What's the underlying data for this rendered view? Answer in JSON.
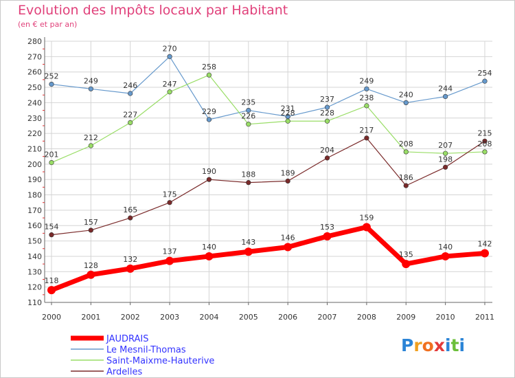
{
  "chart_data": {
    "type": "line",
    "title": "Evolution des Impôts locaux par Habitant",
    "subtitle": "(en € et par an)",
    "xlabel": "",
    "ylabel": "",
    "ylim": [
      110,
      280
    ],
    "ytick_step": 10,
    "grid": true,
    "legend_position": "bottom-left",
    "categories": [
      2000,
      2001,
      2002,
      2003,
      2004,
      2005,
      2006,
      2007,
      2008,
      2009,
      2010,
      2011
    ],
    "series": [
      {
        "name": "JAUDRAIS",
        "color": "#ff0000",
        "labelColor": "#3333ff",
        "highlight": true,
        "values": [
          118,
          128,
          132,
          137,
          140,
          143,
          146,
          153,
          159,
          135,
          140,
          142
        ]
      },
      {
        "name": "Le Mesnil-Thomas",
        "color": "#6699cc",
        "labelColor": "#3333ff",
        "highlight": false,
        "values": [
          252,
          249,
          246,
          270,
          229,
          235,
          231,
          237,
          249,
          240,
          244,
          254
        ]
      },
      {
        "name": "Saint-Maixme-Hauterive",
        "color": "#99dd66",
        "labelColor": "#3333ff",
        "highlight": false,
        "values": [
          201,
          212,
          227,
          247,
          258,
          226,
          228,
          228,
          238,
          208,
          207,
          208
        ]
      },
      {
        "name": "Ardelles",
        "color": "#7a2a2a",
        "labelColor": "#3333ff",
        "highlight": false,
        "values": [
          154,
          157,
          165,
          175,
          190,
          188,
          189,
          204,
          217,
          186,
          198,
          215
        ]
      }
    ]
  },
  "logo": {
    "letters": [
      "P",
      "r",
      "o",
      "x",
      "i",
      "t",
      "i"
    ],
    "colors": [
      "#2b84d6",
      "#f0a020",
      "#f07020",
      "#e33a3a",
      "#2b84d6",
      "#6cbf3a",
      "#2b84d6"
    ]
  }
}
